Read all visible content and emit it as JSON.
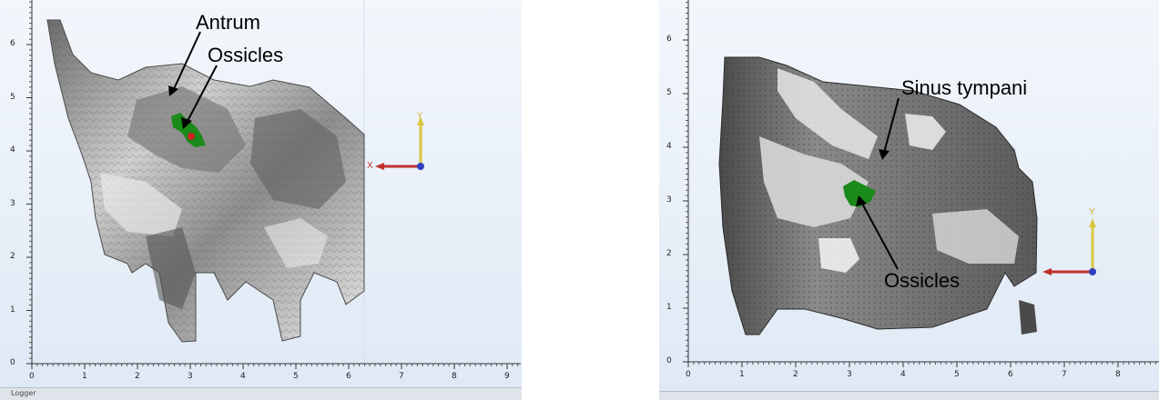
{
  "left_view": {
    "x_ticks": [
      "0",
      "1",
      "2",
      "3",
      "4",
      "5",
      "6",
      "7",
      "8",
      "9"
    ],
    "y_ticks": [
      "0",
      "1",
      "2",
      "3",
      "4",
      "5",
      "6"
    ],
    "labels": {
      "antrum": "Antrum",
      "ossicles": "Ossicles"
    },
    "axis_triad": {
      "y": "Y",
      "x": "X"
    }
  },
  "right_view": {
    "x_ticks": [
      "0",
      "1",
      "2",
      "3",
      "4",
      "5",
      "6",
      "7",
      "8"
    ],
    "y_ticks": [
      "0",
      "1",
      "2",
      "3",
      "4",
      "5",
      "6"
    ],
    "labels": {
      "sinus_tympani": "Sinus tympani",
      "ossicles": "Ossicles"
    },
    "axis_triad": {
      "y": "Y"
    }
  },
  "logger": {
    "label": "Logger"
  },
  "colors": {
    "ossicles": "#1a8a1a",
    "bone_light": "#d9d9d9",
    "bone_dark": "#5a5a5a",
    "background": "#e9f0f8",
    "x_axis": "#c0302a",
    "y_axis": "#d8c640",
    "z_axis": "#3040c0"
  }
}
